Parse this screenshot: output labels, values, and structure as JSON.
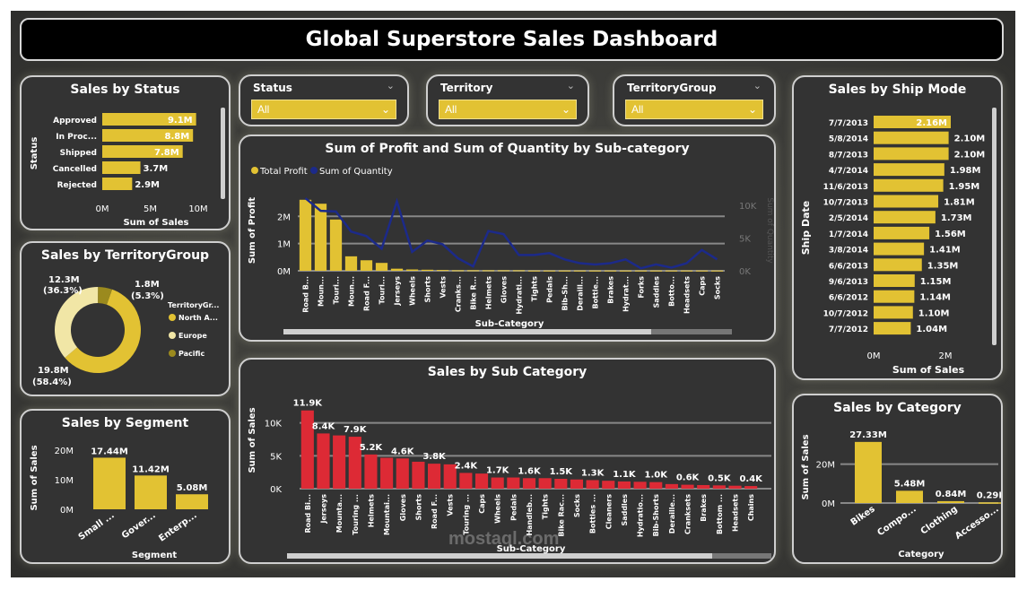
{
  "dashboard_title": "Global Superstore Sales Dashboard",
  "watermark": "mostaql.com",
  "colors": {
    "bar_yellow": "#e2c233",
    "bar_red": "#dd2a35",
    "line_blue": "#1c2a8a",
    "panel_bg": "#333333"
  },
  "slicers": [
    {
      "label": "Status",
      "value": "All"
    },
    {
      "label": "Territory",
      "value": "All"
    },
    {
      "label": "TerritoryGroup",
      "value": "All"
    }
  ],
  "chart_data": [
    {
      "id": "status",
      "type": "bar",
      "orientation": "horizontal",
      "title": "Sales by Status",
      "xlabel": "Sum of Sales",
      "ylabel": "Status",
      "categories": [
        "Approved",
        "In Proc...",
        "Shipped",
        "Cancelled",
        "Rejected"
      ],
      "values": [
        9.1,
        8.8,
        7.8,
        3.7,
        2.9
      ],
      "data_labels": [
        "9.1M",
        "8.8M",
        "7.8M",
        "3.7M",
        "2.9M"
      ],
      "ticks": [
        "0M",
        "5M",
        "10M"
      ],
      "xlim": [
        0,
        10
      ]
    },
    {
      "id": "territory_group",
      "type": "pie",
      "variant": "donut",
      "title": "Sales by TerritoryGroup",
      "legend_title": "TerritoryGr...",
      "slices": [
        {
          "name": "North A...",
          "value": 19.8,
          "label": "19.8M",
          "pct": "(58.4%)",
          "color": "#e2c233"
        },
        {
          "name": "Europe",
          "value": 12.3,
          "label": "12.3M",
          "pct": "(36.3%)",
          "color": "#f1e6a6"
        },
        {
          "name": "Pacific",
          "value": 1.8,
          "label": "1.8M",
          "pct": "(5.3%)",
          "color": "#9b8a1e"
        }
      ]
    },
    {
      "id": "segment",
      "type": "bar",
      "title": "Sales by Segment",
      "xlabel": "Segment",
      "ylabel": "Sum of Sales",
      "categories": [
        "Small ...",
        "Gover...",
        "Enterp..."
      ],
      "values": [
        17.44,
        11.42,
        5.08
      ],
      "data_labels": [
        "17.44M",
        "11.42M",
        "5.08M"
      ],
      "ticks": [
        "0M",
        "10M",
        "20M"
      ],
      "ylim": [
        0,
        20
      ]
    },
    {
      "id": "profit_qty",
      "type": "bar_line",
      "title": "Sum of Profit and Sum of Quantity by Sub-category",
      "xlabel": "Sub-Category",
      "ylabel": "Sum of Profit",
      "y2label": "Sum of Quantity",
      "legend": [
        "Total Profit",
        "Sum of Quantity"
      ],
      "categories": [
        "Road B...",
        "Moun...",
        "Touri...",
        "Moun...",
        "Road F...",
        "Touri...",
        "Jerseys",
        "Wheels",
        "Shorts",
        "Vests",
        "Cranks...",
        "Bike R...",
        "Helmets",
        "Gloves",
        "Hydrati...",
        "Tights",
        "Pedals",
        "Bib-Sh...",
        "Deraill...",
        "Bottle...",
        "Brakes",
        "Hydrat...",
        "Forks",
        "Saddles",
        "Botto...",
        "Headsets",
        "Caps",
        "Socks"
      ],
      "profit": [
        2.7,
        2.55,
        1.95,
        0.55,
        0.4,
        0.3,
        0.08,
        0.05,
        0.04,
        0.03,
        0.02,
        0.02,
        0.02,
        0.02,
        0.02,
        0.01,
        0.01,
        0.01,
        0.01,
        0.01,
        0.01,
        0.01,
        0.01,
        0.01,
        0.01,
        0.01,
        0.01,
        0.01
      ],
      "quantity": [
        11.5,
        9.5,
        9.4,
        6.2,
        5.5,
        3.5,
        11.0,
        3.0,
        4.8,
        4.2,
        2.0,
        0.7,
        6.3,
        5.8,
        2.5,
        2.5,
        2.8,
        1.8,
        1.2,
        1.0,
        1.2,
        1.8,
        0.4,
        1.0,
        0.5,
        1.2,
        3.3,
        1.8
      ],
      "ticks_left": [
        "0M",
        "1M",
        "2M"
      ],
      "ylim": [
        0,
        3
      ],
      "ticks_right": [
        "0K",
        "5K",
        "10K"
      ],
      "y2lim": [
        0,
        15
      ]
    },
    {
      "id": "sub_category",
      "type": "bar",
      "title": "Sales by Sub Category",
      "xlabel": "Sub-Category",
      "ylabel": "Sum of Sales",
      "categories": [
        "Road Bi...",
        "Jerseys",
        "Mounta...",
        "Touring ...",
        "Helmets",
        "Mountai...",
        "Gloves",
        "Shorts",
        "Road F...",
        "Vests",
        "Touring ...",
        "Caps",
        "Wheels",
        "Pedals",
        "Handleb...",
        "Tights",
        "Bike Rac...",
        "Socks",
        "Bottles ...",
        "Cleaners",
        "Saddles",
        "Hydratio...",
        "Bib-Shorts",
        "Deraille...",
        "Cranksets",
        "Brakes",
        "Bottom ...",
        "Headsets",
        "Chains"
      ],
      "values": [
        11.9,
        8.4,
        8.1,
        7.9,
        5.2,
        4.7,
        4.6,
        4.1,
        3.8,
        3.7,
        2.4,
        2.3,
        1.7,
        1.7,
        1.6,
        1.6,
        1.5,
        1.4,
        1.3,
        1.2,
        1.1,
        1.05,
        1.0,
        0.7,
        0.6,
        0.55,
        0.5,
        0.45,
        0.4
      ],
      "data_labels": [
        "11.9K",
        "8.4K",
        "",
        "7.9K",
        "5.2K",
        "",
        "4.6K",
        "",
        "3.8K",
        "",
        "2.4K",
        "",
        "1.7K",
        "",
        "1.6K",
        "",
        "1.5K",
        "",
        "1.3K",
        "",
        "1.1K",
        "",
        "1.0K",
        "",
        "0.6K",
        "",
        "0.5K",
        "",
        "0.4K"
      ],
      "ticks": [
        "0K",
        "5K",
        "10K"
      ],
      "ylim": [
        0,
        12
      ]
    },
    {
      "id": "ship_mode",
      "type": "bar",
      "orientation": "horizontal",
      "title": "Sales by Ship Mode",
      "xlabel": "Sum of Sales",
      "ylabel": "Ship Date",
      "categories": [
        "7/7/2013",
        "5/8/2014",
        "8/7/2013",
        "4/7/2014",
        "11/6/2013",
        "10/7/2013",
        "2/5/2014",
        "1/7/2014",
        "3/8/2014",
        "6/6/2013",
        "9/6/2013",
        "6/6/2012",
        "10/7/2012",
        "7/7/2012"
      ],
      "values": [
        2.16,
        2.1,
        2.1,
        1.98,
        1.95,
        1.81,
        1.73,
        1.56,
        1.41,
        1.35,
        1.15,
        1.14,
        1.1,
        1.04
      ],
      "data_labels": [
        "2.16M",
        "2.10M",
        "2.10M",
        "1.98M",
        "1.95M",
        "1.81M",
        "1.73M",
        "1.56M",
        "1.41M",
        "1.35M",
        "1.15M",
        "1.14M",
        "1.10M",
        "1.04M"
      ],
      "ticks": [
        "0M",
        "2M"
      ],
      "xlim": [
        0,
        2.3
      ]
    },
    {
      "id": "category",
      "type": "bar",
      "title": "Sales by Category",
      "xlabel": "Category",
      "ylabel": "Sum of Sales",
      "categories": [
        "Bikes",
        "Compo...",
        "Clothing",
        "Accesso..."
      ],
      "values": [
        27.33,
        5.48,
        0.84,
        0.29
      ],
      "data_labels": [
        "27.33M",
        "5.48M",
        "0.84M",
        "0.29M"
      ],
      "ticks": [
        "0M",
        "20M"
      ],
      "ylim": [
        0,
        30
      ]
    }
  ]
}
